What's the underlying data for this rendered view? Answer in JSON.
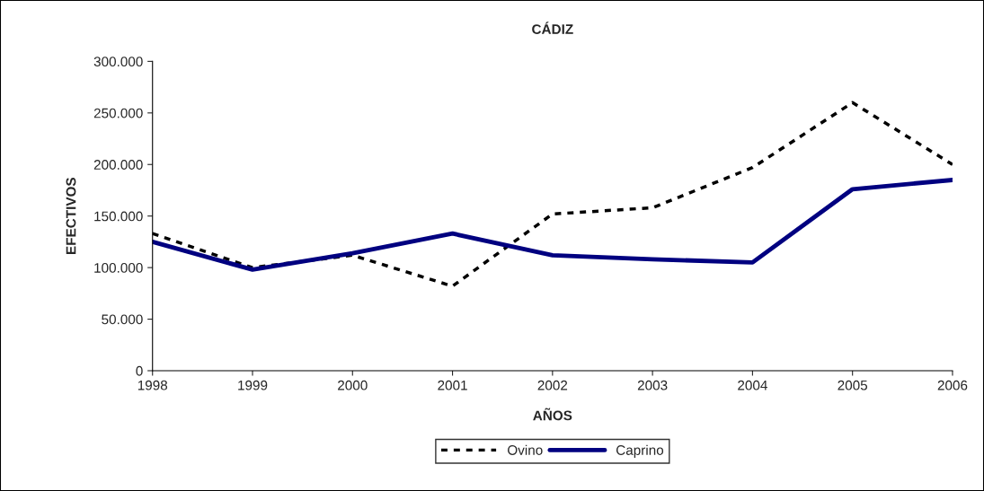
{
  "chart_data": {
    "type": "line",
    "title": "CÁDIZ",
    "xlabel": "AÑOS",
    "ylabel": "EFECTIVOS",
    "x": [
      1998,
      1999,
      2000,
      2001,
      2002,
      2003,
      2004,
      2005,
      2006
    ],
    "series": [
      {
        "name": "Ovino",
        "color": "#000000",
        "line_style": "dashed",
        "values": [
          133000,
          100000,
          112000,
          82000,
          152000,
          158000,
          197000,
          260000,
          200000
        ]
      },
      {
        "name": "Caprino",
        "color": "#000080",
        "line_style": "solid",
        "values": [
          125000,
          98000,
          114000,
          133000,
          112000,
          108000,
          105000,
          176000,
          185000
        ]
      }
    ],
    "xlim": [
      1998,
      2006
    ],
    "xticks": [
      1998,
      1999,
      2000,
      2001,
      2002,
      2003,
      2004,
      2005,
      2006
    ],
    "ylim": [
      0,
      300000
    ],
    "yticks": [
      {
        "value": 0,
        "label": "0"
      },
      {
        "value": 50000,
        "label": "50.000"
      },
      {
        "value": 100000,
        "label": "100.000"
      },
      {
        "value": 150000,
        "label": "150.000"
      },
      {
        "value": 200000,
        "label": "200.000"
      },
      {
        "value": 250000,
        "label": "250.000"
      },
      {
        "value": 300000,
        "label": "300.000"
      }
    ],
    "grid": false,
    "legend": "bottom",
    "marker": "none"
  }
}
